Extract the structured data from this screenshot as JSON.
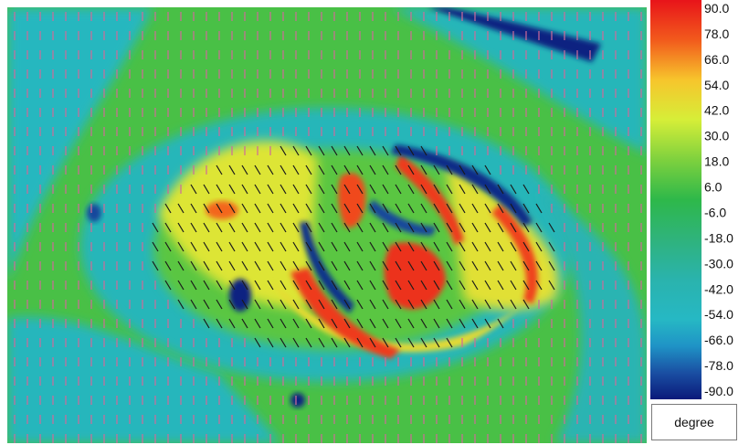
{
  "chart_data": {
    "type": "heatmap",
    "title": "",
    "xlabel": "",
    "ylabel": "",
    "colorbar": {
      "unit": "degree",
      "ticks": [
        "90.0",
        "78.0",
        "66.0",
        "54.0",
        "42.0",
        "30.0",
        "18.0",
        "6.0",
        "-6.0",
        "-18.0",
        "-30.0",
        "-42.0",
        "-54.0",
        "-66.0",
        "-78.0",
        "-90.0"
      ],
      "range": [
        -90,
        90
      ],
      "colors": [
        {
          "value": 90,
          "color": "#e8141a"
        },
        {
          "value": 72,
          "color": "#f25a1c"
        },
        {
          "value": 54,
          "color": "#f7c52c"
        },
        {
          "value": 36,
          "color": "#d6ee38"
        },
        {
          "value": 18,
          "color": "#7ed13e"
        },
        {
          "value": 0,
          "color": "#2eb84a"
        },
        {
          "value": -18,
          "color": "#2fb37c"
        },
        {
          "value": -36,
          "color": "#2ab3ad"
        },
        {
          "value": -54,
          "color": "#26b8c4"
        },
        {
          "value": -66,
          "color": "#1f93c6"
        },
        {
          "value": -78,
          "color": "#1a4fa3"
        },
        {
          "value": -90,
          "color": "#0a1a7a"
        }
      ]
    },
    "features": [
      {
        "kind": "background",
        "value": 6
      },
      {
        "kind": "band",
        "value": -50,
        "description_region": "left"
      },
      {
        "kind": "blob",
        "value": 40,
        "region": "eye-outer"
      },
      {
        "kind": "blob",
        "value": 80,
        "region": "eye-arcs"
      },
      {
        "kind": "blob",
        "value": -85,
        "region": "eye-gaps"
      }
    ]
  }
}
